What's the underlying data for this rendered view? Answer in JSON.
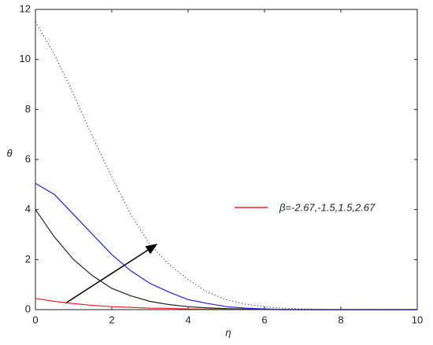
{
  "chart_data": {
    "type": "line",
    "x_label": "η",
    "y_label": "θ",
    "x": [
      0,
      0.5,
      1,
      1.5,
      2,
      2.5,
      3,
      3.5,
      4,
      4.5,
      5,
      5.5,
      6,
      6.5,
      7,
      7.5,
      8,
      8.5,
      9,
      9.5,
      10
    ],
    "series": [
      {
        "name": "β=-2.67,-1.5,1.5,2.67",
        "color": "#e8232a",
        "dash": "solid",
        "values": [
          0.45,
          0.33,
          0.24,
          0.17,
          0.12,
          0.09,
          0.06,
          0.05,
          0.03,
          0.02,
          0.02,
          0.01,
          0.01,
          0,
          0,
          0,
          0,
          0,
          0,
          0,
          0
        ]
      },
      {
        "color": "#222222",
        "dash": "solid",
        "values": [
          4.0,
          2.9,
          2.0,
          1.35,
          0.85,
          0.55,
          0.33,
          0.2,
          0.12,
          0.07,
          0.04,
          0.02,
          0.01,
          0,
          0,
          0,
          0,
          0,
          0,
          0,
          0
        ]
      },
      {
        "color": "#2020e0",
        "dash": "solid",
        "values": [
          5.05,
          4.6,
          3.8,
          3.0,
          2.2,
          1.55,
          1.05,
          0.7,
          0.4,
          0.25,
          0.12,
          0.06,
          0.03,
          0.01,
          0,
          0,
          0,
          0,
          0,
          0,
          0
        ]
      },
      {
        "color": "#222222",
        "dash": "dotted",
        "values": [
          11.5,
          10.2,
          8.6,
          6.9,
          5.3,
          3.8,
          2.6,
          1.8,
          1.2,
          0.7,
          0.4,
          0.22,
          0.12,
          0.06,
          0.03,
          0.01,
          0,
          0,
          0,
          0,
          0
        ]
      }
    ],
    "xlim": [
      0,
      10
    ],
    "xticks": [
      0,
      2,
      4,
      6,
      8,
      10
    ],
    "ylim": [
      0,
      12
    ],
    "yticks": [
      0,
      2,
      4,
      6,
      8,
      10,
      12
    ],
    "grid": false
  }
}
